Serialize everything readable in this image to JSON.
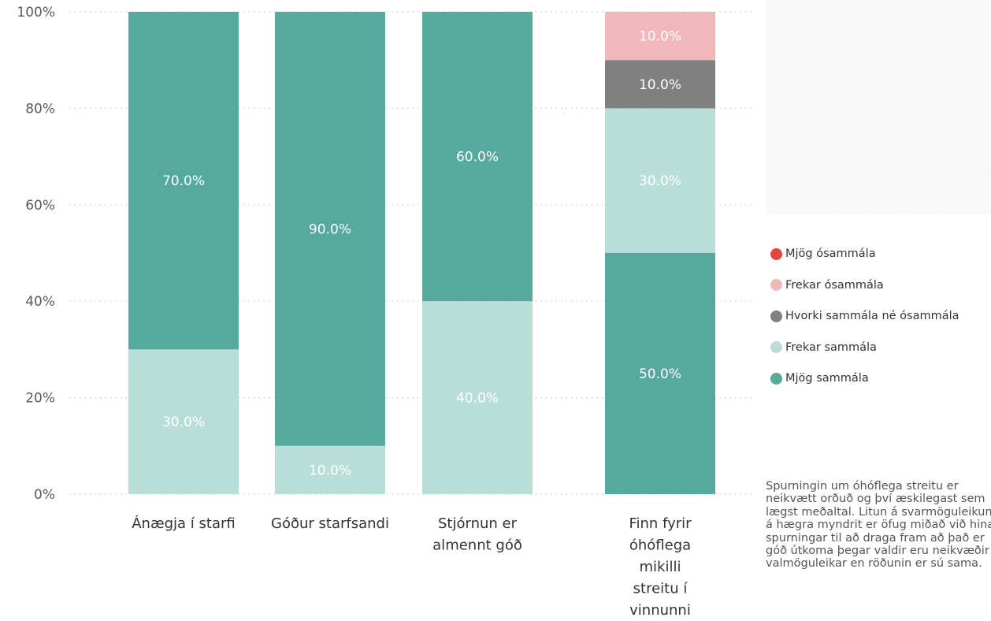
{
  "chart_data": {
    "type": "bar",
    "stacked": true,
    "percent": true,
    "categories": [
      "Ánægja í starfi",
      "Góður starfsandi",
      "Stjórnun er almennt góð",
      "Finn fyrir óhóflega mikilli streitu í vinnunni"
    ],
    "category_lines": [
      [
        "Ánægja í starfi"
      ],
      [
        "Góður starfsandi"
      ],
      [
        "Stjórnun er",
        "almennt góð"
      ],
      [
        "Finn fyrir",
        "óhóflega",
        "mikilli",
        "streitu í",
        "vinnunni"
      ]
    ],
    "series": [
      {
        "name": "Mjög sammála",
        "color": "#55aa9d",
        "values": [
          70,
          90,
          60,
          50
        ],
        "labels": [
          "70.0%",
          "90.0%",
          "60.0%",
          "50.0%"
        ]
      },
      {
        "name": "Frekar sammála",
        "color": "#b9ded8",
        "values": [
          30,
          10,
          40,
          30
        ],
        "labels": [
          "30.0%",
          "10.0%",
          "40.0%",
          "30.0%"
        ]
      },
      {
        "name": "Hvorki sammála né ósammála",
        "color": "#808080",
        "values": [
          0,
          0,
          0,
          10
        ],
        "labels": [
          "",
          "",
          "",
          "10.0%"
        ]
      },
      {
        "name": "Frekar ósammála",
        "color": "#f0b8bb",
        "values": [
          0,
          0,
          0,
          10
        ],
        "labels": [
          "",
          "",
          "",
          "10.0%"
        ]
      },
      {
        "name": "Mjög ósammála",
        "color": "#e8443a",
        "values": [
          0,
          0,
          0,
          0
        ],
        "labels": [
          "",
          "",
          "",
          ""
        ]
      }
    ],
    "stack_order": [
      [
        "Frekar sammála",
        "Mjög sammála"
      ],
      [
        "Frekar sammála",
        "Mjög sammála"
      ],
      [
        "Frekar sammála",
        "Mjög sammála"
      ],
      [
        "Mjög sammála",
        "Frekar sammála",
        "Hvorki sammála né ósammála",
        "Frekar ósammála"
      ]
    ],
    "label_colors": {
      "Mjög sammála": "#ffffff",
      "Frekar sammála": "#ffffff",
      "Hvorki sammála né ósammála": "#ffffff",
      "Frekar ósammála": "#ffffff"
    },
    "ylim": [
      0,
      100
    ],
    "yticks": [
      0,
      20,
      40,
      60,
      80,
      100
    ],
    "ytick_labels": [
      "0%",
      "20%",
      "40%",
      "60%",
      "80%",
      "100%"
    ],
    "grid": true,
    "legend_position": "right",
    "title": "",
    "xlabel": "",
    "ylabel": ""
  },
  "legend": {
    "items": [
      {
        "label": "Mjög ósammála",
        "color": "#e8443a"
      },
      {
        "label": "Frekar ósammála",
        "color": "#f0b8bb"
      },
      {
        "label": "Hvorki sammála né ósammála",
        "color": "#808080"
      },
      {
        "label": "Frekar sammála",
        "color": "#b9ded8"
      },
      {
        "label": "Mjög sammála",
        "color": "#55aa9d"
      }
    ]
  },
  "note": {
    "text": "Spurningin um óhóflega streitu er neikvætt orðuð og því æskilegast sem lægst meðaltal. Litun á svarmöguleikum á hægra myndrit er öfug miðað við hinar spurningar til að draga fram að það er góð útkoma þegar valdir eru neikvæðir valmöguleikar en röðunin er sú sama."
  }
}
